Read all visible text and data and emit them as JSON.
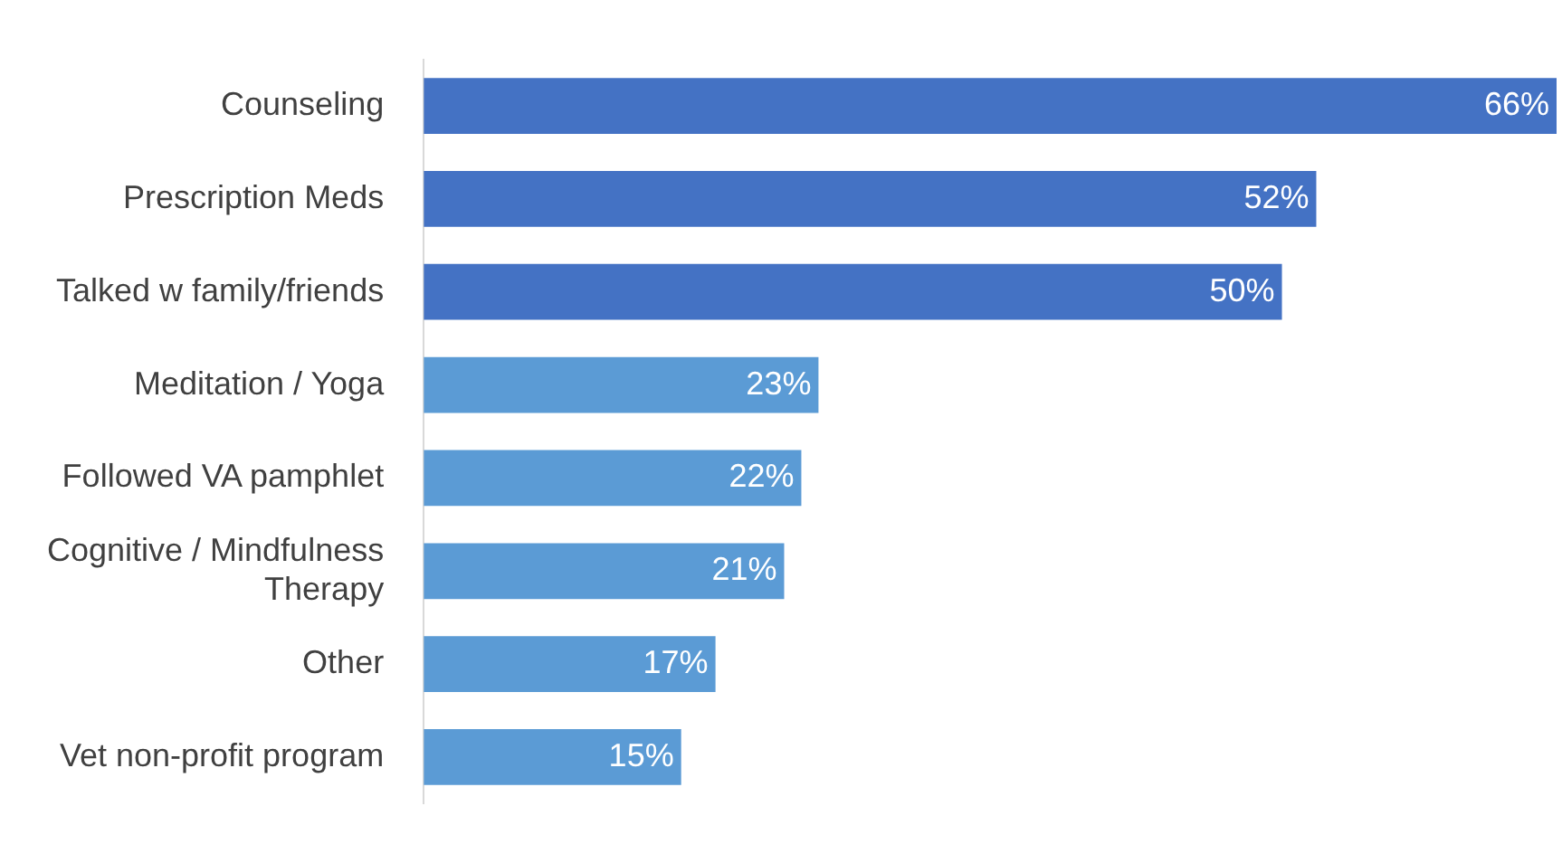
{
  "chart_data": {
    "type": "bar",
    "orientation": "horizontal",
    "categories": [
      "Counseling",
      "Prescription Meds",
      "Talked w family/friends",
      "Meditation / Yoga",
      "Followed VA pamphlet",
      "Cognitive / Mindfulness Therapy",
      "Other",
      "Vet non-profit program"
    ],
    "values": [
      66,
      52,
      50,
      23,
      22,
      21,
      17,
      15
    ],
    "colors": [
      "#4472c4",
      "#4472c4",
      "#4472c4",
      "#5b9bd5",
      "#5b9bd5",
      "#5b9bd5",
      "#5b9bd5",
      "#5b9bd5"
    ],
    "value_labels": [
      "66%",
      "52%",
      "50%",
      "23%",
      "22%",
      "21%",
      "17%",
      "15%"
    ],
    "xlim": [
      0,
      66
    ],
    "tick_labels": "y"
  }
}
